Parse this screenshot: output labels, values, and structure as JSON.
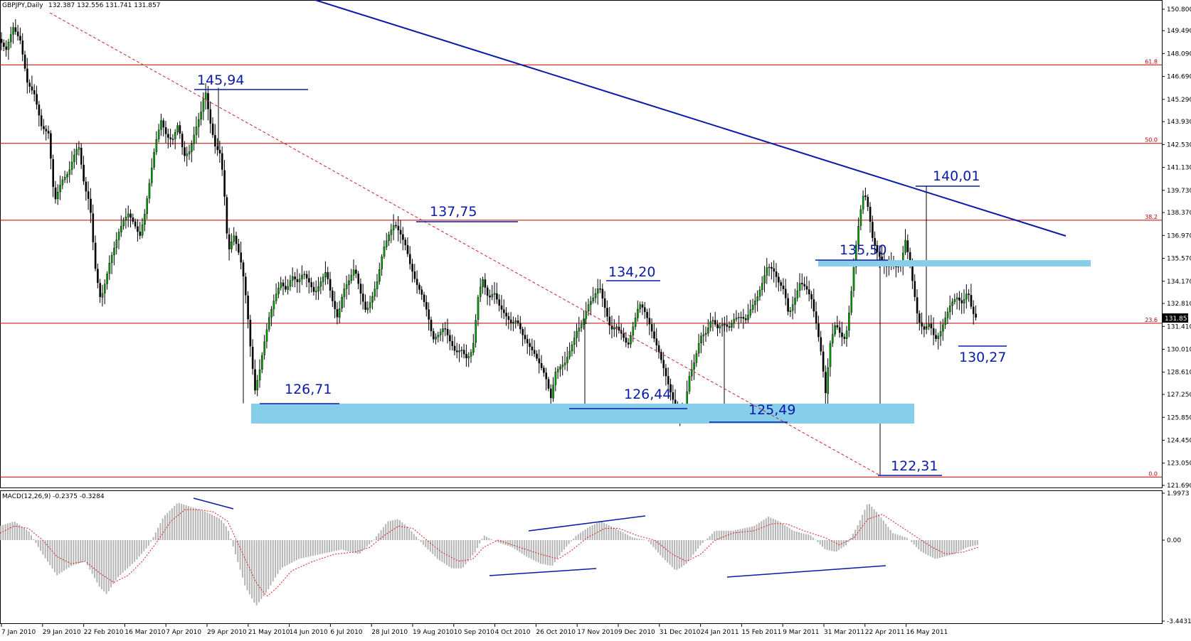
{
  "chart_data": {
    "type": "candlestick",
    "title": "GBPJPY,Daily",
    "ohlc_readout": "132.387 132.556 131.741 131.857",
    "last_price": "131.857",
    "y_ticks": [
      "150.800",
      "149.490",
      "148.090",
      "146.690",
      "145.290",
      "143.930",
      "142.530",
      "141.130",
      "139.730",
      "138.370",
      "136.970",
      "135.570",
      "134.170",
      "132.810",
      "131.410",
      "130.010",
      "128.610",
      "127.250",
      "125.850",
      "124.450",
      "123.050",
      "121.690"
    ],
    "ylim": [
      121.69,
      150.8
    ],
    "x_ticks": [
      "7 Jan 2010",
      "29 Jan 2010",
      "22 Feb 2010",
      "16 Mar 2010",
      "7 Apr 2010",
      "29 Apr 2010",
      "21 May 2010",
      "14 Jun 2010",
      "6 Jul 2010",
      "28 Jul 2010",
      "19 Aug 2010",
      "10 Sep 2010",
      "4 Oct 2010",
      "26 Oct 2010",
      "17 Nov 2010",
      "9 Dec 2010",
      "31 Dec 2010",
      "24 Jan 2011",
      "15 Feb 2011",
      "9 Mar 2011",
      "31 Mar 2011",
      "22 Apr 2011",
      "16 May 2011"
    ],
    "fib_levels": [
      {
        "label": "61.8",
        "price": 147.4
      },
      {
        "label": "50.0",
        "price": 142.6
      },
      {
        "label": "38.2",
        "price": 137.9
      },
      {
        "label": "23.6",
        "price": 131.6
      },
      {
        "label": "0.0",
        "price": 122.2
      }
    ],
    "price_path": [
      [
        0,
        149.0
      ],
      [
        10,
        148.3
      ],
      [
        20,
        149.7
      ],
      [
        30,
        148.9
      ],
      [
        40,
        146.3
      ],
      [
        50,
        145.6
      ],
      [
        60,
        143.6
      ],
      [
        70,
        143.2
      ],
      [
        78,
        139.0
      ],
      [
        88,
        140.3
      ],
      [
        98,
        140.8
      ],
      [
        105,
        141.8
      ],
      [
        112,
        142.5
      ],
      [
        120,
        140.0
      ],
      [
        128,
        138.9
      ],
      [
        135,
        135.1
      ],
      [
        143,
        133.0
      ],
      [
        150,
        134.2
      ],
      [
        156,
        135.4
      ],
      [
        162,
        136.2
      ],
      [
        168,
        137.1
      ],
      [
        175,
        137.9
      ],
      [
        182,
        138.3
      ],
      [
        190,
        137.7
      ],
      [
        198,
        136.9
      ],
      [
        205,
        138.3
      ],
      [
        212,
        140.3
      ],
      [
        220,
        142.6
      ],
      [
        228,
        144.0
      ],
      [
        236,
        143.0
      ],
      [
        244,
        142.8
      ],
      [
        252,
        143.8
      ],
      [
        260,
        141.8
      ],
      [
        268,
        142.1
      ],
      [
        276,
        143.4
      ],
      [
        284,
        144.5
      ],
      [
        290,
        145.9
      ],
      [
        296,
        144.1
      ],
      [
        304,
        142.4
      ],
      [
        312,
        141.9
      ],
      [
        318,
        138.9
      ],
      [
        322,
        135.9
      ],
      [
        330,
        137.0
      ],
      [
        336,
        136.1
      ],
      [
        342,
        135.0
      ],
      [
        348,
        132.9
      ],
      [
        354,
        129.9
      ],
      [
        360,
        127.5
      ],
      [
        366,
        128.6
      ],
      [
        372,
        130.2
      ],
      [
        380,
        132.0
      ],
      [
        388,
        133.2
      ],
      [
        396,
        134.1
      ],
      [
        404,
        133.6
      ],
      [
        412,
        134.5
      ],
      [
        420,
        134.1
      ],
      [
        428,
        134.7
      ],
      [
        436,
        134.1
      ],
      [
        444,
        133.4
      ],
      [
        452,
        134.1
      ],
      [
        460,
        134.8
      ],
      [
        468,
        133.1
      ],
      [
        476,
        131.9
      ],
      [
        484,
        133.6
      ],
      [
        492,
        134.2
      ],
      [
        500,
        135.0
      ],
      [
        508,
        133.5
      ],
      [
        516,
        132.3
      ],
      [
        524,
        133.1
      ],
      [
        532,
        134.2
      ],
      [
        540,
        136.1
      ],
      [
        548,
        137.0
      ],
      [
        556,
        137.7
      ],
      [
        564,
        137.1
      ],
      [
        572,
        136.3
      ],
      [
        578,
        135.2
      ],
      [
        586,
        134.1
      ],
      [
        594,
        133.4
      ],
      [
        602,
        132.3
      ],
      [
        610,
        130.6
      ],
      [
        618,
        130.9
      ],
      [
        626,
        131.4
      ],
      [
        634,
        130.5
      ],
      [
        642,
        129.8
      ],
      [
        650,
        130.0
      ],
      [
        658,
        129.4
      ],
      [
        666,
        130.0
      ],
      [
        674,
        133.4
      ],
      [
        680,
        134.3
      ],
      [
        688,
        133.1
      ],
      [
        696,
        133.5
      ],
      [
        704,
        132.6
      ],
      [
        712,
        132.1
      ],
      [
        720,
        131.6
      ],
      [
        728,
        131.8
      ],
      [
        736,
        130.9
      ],
      [
        744,
        130.3
      ],
      [
        752,
        129.8
      ],
      [
        760,
        129.1
      ],
      [
        768,
        128.4
      ],
      [
        776,
        127.0
      ],
      [
        782,
        128.6
      ],
      [
        788,
        128.9
      ],
      [
        796,
        129.2
      ],
      [
        804,
        130.1
      ],
      [
        812,
        131.1
      ],
      [
        820,
        131.6
      ],
      [
        828,
        132.7
      ],
      [
        836,
        133.2
      ],
      [
        844,
        133.9
      ],
      [
        852,
        132.5
      ],
      [
        860,
        131.2
      ],
      [
        868,
        131.4
      ],
      [
        876,
        130.9
      ],
      [
        884,
        130.2
      ],
      [
        892,
        131.5
      ],
      [
        900,
        132.8
      ],
      [
        906,
        132.5
      ],
      [
        914,
        131.6
      ],
      [
        920,
        130.8
      ],
      [
        928,
        129.8
      ],
      [
        936,
        128.6
      ],
      [
        944,
        127.4
      ],
      [
        952,
        126.3
      ],
      [
        958,
        125.8
      ],
      [
        964,
        126.4
      ],
      [
        970,
        128.3
      ],
      [
        978,
        129.3
      ],
      [
        986,
        130.8
      ],
      [
        994,
        131.0
      ],
      [
        1002,
        131.9
      ],
      [
        1010,
        131.3
      ],
      [
        1018,
        131.6
      ],
      [
        1026,
        131.3
      ],
      [
        1034,
        131.9
      ],
      [
        1042,
        132.0
      ],
      [
        1050,
        131.8
      ],
      [
        1058,
        132.6
      ],
      [
        1066,
        133.2
      ],
      [
        1074,
        134.2
      ],
      [
        1080,
        135.1
      ],
      [
        1088,
        134.9
      ],
      [
        1096,
        134.1
      ],
      [
        1104,
        133.6
      ],
      [
        1110,
        132.1
      ],
      [
        1118,
        133.0
      ],
      [
        1126,
        134.1
      ],
      [
        1134,
        133.8
      ],
      [
        1142,
        133.1
      ],
      [
        1150,
        131.3
      ],
      [
        1156,
        129.7
      ],
      [
        1162,
        127.3
      ],
      [
        1168,
        130.3
      ],
      [
        1176,
        131.6
      ],
      [
        1184,
        130.8
      ],
      [
        1190,
        130.6
      ],
      [
        1196,
        132.6
      ],
      [
        1204,
        136.1
      ],
      [
        1210,
        138.2
      ],
      [
        1216,
        139.7
      ],
      [
        1222,
        138.6
      ],
      [
        1228,
        136.8
      ],
      [
        1234,
        136.0
      ],
      [
        1240,
        135.5
      ],
      [
        1246,
        135.0
      ],
      [
        1254,
        135.3
      ],
      [
        1262,
        135.0
      ],
      [
        1268,
        135.2
      ],
      [
        1274,
        136.7
      ],
      [
        1280,
        135.4
      ],
      [
        1286,
        133.6
      ],
      [
        1292,
        131.8
      ],
      [
        1300,
        131.2
      ],
      [
        1308,
        131.6
      ],
      [
        1316,
        130.6
      ],
      [
        1322,
        130.9
      ],
      [
        1330,
        131.9
      ],
      [
        1338,
        132.8
      ],
      [
        1346,
        133.2
      ],
      [
        1354,
        132.8
      ],
      [
        1362,
        133.6
      ],
      [
        1368,
        132.3
      ],
      [
        1374,
        131.9
      ]
    ],
    "annotations": [
      {
        "text": "145,94",
        "price": 145.94
      },
      {
        "text": "137,75",
        "price": 137.75
      },
      {
        "text": "140,01",
        "price": 140.01
      },
      {
        "text": "135,50",
        "price": 135.5
      },
      {
        "text": "134,20",
        "price": 134.2
      },
      {
        "text": "126,71",
        "price": 126.71
      },
      {
        "text": "126,44",
        "price": 126.44
      },
      {
        "text": "125,49",
        "price": 125.49
      },
      {
        "text": "122,31",
        "price": 122.31
      },
      {
        "text": "130,27",
        "price": 130.27
      }
    ],
    "macd": {
      "label": "MACD(12,26,9) -0.2375 -0.3284",
      "y_ticks": [
        "1.9973",
        "0.00",
        "-3.4431"
      ],
      "ylim": [
        -3.4431,
        1.9973
      ],
      "hist_path": [
        [
          0,
          0.6
        ],
        [
          20,
          0.8
        ],
        [
          40,
          0.4
        ],
        [
          60,
          -0.6
        ],
        [
          80,
          -1.5
        ],
        [
          100,
          -1.1
        ],
        [
          120,
          -0.9
        ],
        [
          140,
          -2.0
        ],
        [
          150,
          -2.3
        ],
        [
          165,
          -1.6
        ],
        [
          190,
          -0.9
        ],
        [
          210,
          -0.2
        ],
        [
          230,
          1.0
        ],
        [
          250,
          1.6
        ],
        [
          270,
          1.4
        ],
        [
          290,
          1.2
        ],
        [
          310,
          0.9
        ],
        [
          320,
          0.5
        ],
        [
          330,
          -0.5
        ],
        [
          345,
          -2.0
        ],
        [
          360,
          -2.8
        ],
        [
          375,
          -2.2
        ],
        [
          395,
          -1.2
        ],
        [
          420,
          -0.8
        ],
        [
          450,
          -0.6
        ],
        [
          480,
          -0.4
        ],
        [
          505,
          -0.6
        ],
        [
          525,
          0.0
        ],
        [
          545,
          0.8
        ],
        [
          560,
          0.9
        ],
        [
          575,
          0.5
        ],
        [
          595,
          -0.2
        ],
        [
          615,
          -0.8
        ],
        [
          635,
          -1.2
        ],
        [
          650,
          -1.2
        ],
        [
          668,
          -0.5
        ],
        [
          680,
          0.2
        ],
        [
          700,
          -0.1
        ],
        [
          720,
          -0.3
        ],
        [
          740,
          -0.7
        ],
        [
          760,
          -1.0
        ],
        [
          776,
          -1.1
        ],
        [
          790,
          -0.5
        ],
        [
          810,
          0.2
        ],
        [
          830,
          0.6
        ],
        [
          845,
          0.8
        ],
        [
          865,
          0.5
        ],
        [
          890,
          0.1
        ],
        [
          910,
          0.0
        ],
        [
          930,
          -0.7
        ],
        [
          950,
          -1.3
        ],
        [
          965,
          -1.0
        ],
        [
          985,
          -0.2
        ],
        [
          1005,
          0.4
        ],
        [
          1030,
          0.4
        ],
        [
          1060,
          0.6
        ],
        [
          1080,
          1.0
        ],
        [
          1095,
          0.8
        ],
        [
          1115,
          0.4
        ],
        [
          1140,
          0.2
        ],
        [
          1160,
          -0.4
        ],
        [
          1175,
          -0.5
        ],
        [
          1190,
          -0.2
        ],
        [
          1205,
          0.6
        ],
        [
          1220,
          1.6
        ],
        [
          1235,
          1.1
        ],
        [
          1255,
          0.3
        ],
        [
          1275,
          0.1
        ],
        [
          1295,
          -0.5
        ],
        [
          1315,
          -0.8
        ],
        [
          1340,
          -0.6
        ],
        [
          1360,
          -0.3
        ],
        [
          1375,
          -0.2
        ]
      ],
      "signal_path": [
        [
          0,
          0.3
        ],
        [
          20,
          0.6
        ],
        [
          40,
          0.5
        ],
        [
          60,
          0.0
        ],
        [
          80,
          -0.7
        ],
        [
          100,
          -1.0
        ],
        [
          120,
          -0.9
        ],
        [
          140,
          -1.4
        ],
        [
          160,
          -1.8
        ],
        [
          180,
          -1.5
        ],
        [
          200,
          -0.9
        ],
        [
          220,
          -0.1
        ],
        [
          240,
          0.8
        ],
        [
          260,
          1.3
        ],
        [
          280,
          1.3
        ],
        [
          300,
          1.2
        ],
        [
          320,
          0.8
        ],
        [
          340,
          -0.5
        ],
        [
          360,
          -1.8
        ],
        [
          375,
          -2.4
        ],
        [
          390,
          -2.0
        ],
        [
          410,
          -1.3
        ],
        [
          440,
          -0.9
        ],
        [
          470,
          -0.6
        ],
        [
          500,
          -0.5
        ],
        [
          520,
          -0.3
        ],
        [
          540,
          0.2
        ],
        [
          560,
          0.6
        ],
        [
          580,
          0.5
        ],
        [
          600,
          0.0
        ],
        [
          620,
          -0.5
        ],
        [
          645,
          -0.9
        ],
        [
          665,
          -0.8
        ],
        [
          680,
          -0.3
        ],
        [
          700,
          0.0
        ],
        [
          730,
          -0.3
        ],
        [
          760,
          -0.6
        ],
        [
          785,
          -0.8
        ],
        [
          805,
          -0.4
        ],
        [
          825,
          0.1
        ],
        [
          850,
          0.5
        ],
        [
          870,
          0.5
        ],
        [
          895,
          0.2
        ],
        [
          920,
          0.0
        ],
        [
          945,
          -0.6
        ],
        [
          965,
          -0.9
        ],
        [
          985,
          -0.6
        ],
        [
          1005,
          0.0
        ],
        [
          1030,
          0.3
        ],
        [
          1060,
          0.4
        ],
        [
          1085,
          0.7
        ],
        [
          1105,
          0.7
        ],
        [
          1130,
          0.4
        ],
        [
          1160,
          0.1
        ],
        [
          1180,
          -0.2
        ],
        [
          1200,
          0.1
        ],
        [
          1220,
          0.9
        ],
        [
          1240,
          1.1
        ],
        [
          1260,
          0.7
        ],
        [
          1285,
          0.2
        ],
        [
          1310,
          -0.3
        ],
        [
          1330,
          -0.6
        ],
        [
          1355,
          -0.5
        ],
        [
          1375,
          -0.3
        ]
      ]
    }
  }
}
